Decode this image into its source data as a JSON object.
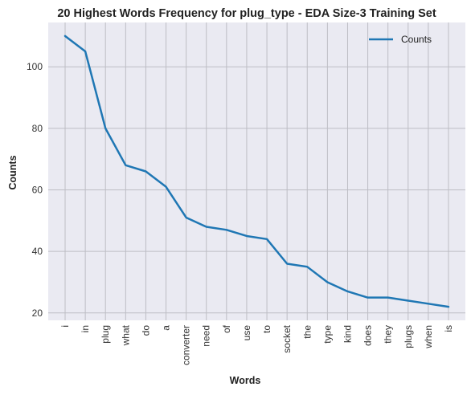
{
  "chart_data": {
    "type": "line",
    "title": "20 Highest Words Frequency for plug_type - EDA Size-3 Training Set",
    "xlabel": "Words",
    "ylabel": "Counts",
    "categories": [
      "i",
      "in",
      "plug",
      "what",
      "do",
      "a",
      "converter",
      "need",
      "of",
      "use",
      "to",
      "socket",
      "the",
      "type",
      "kind",
      "does",
      "they",
      "plugs",
      "when",
      "is"
    ],
    "series": [
      {
        "name": "Counts",
        "values": [
          110,
          105,
          80,
          68,
          66,
          61,
          51,
          48,
          47,
          45,
          44,
          36,
          35,
          30,
          27,
          25,
          25,
          24,
          23,
          22
        ],
        "color": "#1f77b4"
      }
    ],
    "yticks": [
      20,
      40,
      60,
      80,
      100
    ],
    "ylim": [
      17.6,
      114.4
    ],
    "grid": true,
    "legend_position": "top-right",
    "background_color": "#eaeaf2",
    "grid_color": "#bdbdc4"
  }
}
